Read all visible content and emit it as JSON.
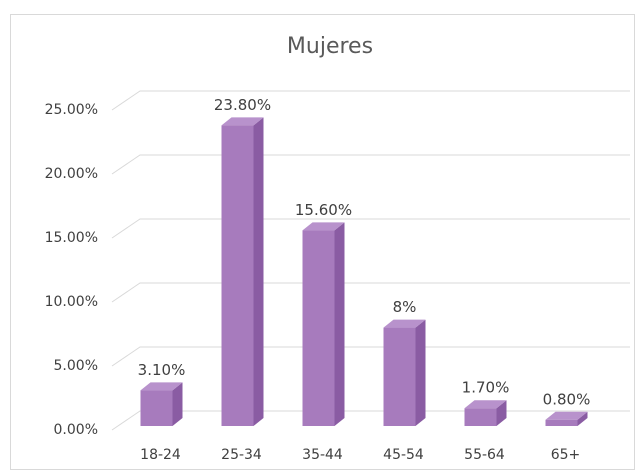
{
  "chart_data": {
    "type": "bar3d",
    "title": "Mujeres",
    "categories": [
      "18-24",
      "25-34",
      "35-44",
      "45-54",
      "55-64",
      "65+"
    ],
    "values": [
      3.1,
      23.8,
      15.6,
      8,
      1.7,
      0.8
    ],
    "value_labels": [
      "3.10%",
      "23.80%",
      "15.60%",
      "8%",
      "1.70%",
      "0.80%"
    ],
    "color": "#a77bbd",
    "ylim": [
      0,
      25
    ],
    "yticks": [
      {
        "value": 0,
        "label": "0.00%"
      },
      {
        "value": 5,
        "label": "5.00%"
      },
      {
        "value": 10,
        "label": "10.00%"
      },
      {
        "value": 15,
        "label": "15.00%"
      },
      {
        "value": 20,
        "label": "20.00%"
      },
      {
        "value": 25,
        "label": "25.00%"
      }
    ],
    "grid": true
  }
}
